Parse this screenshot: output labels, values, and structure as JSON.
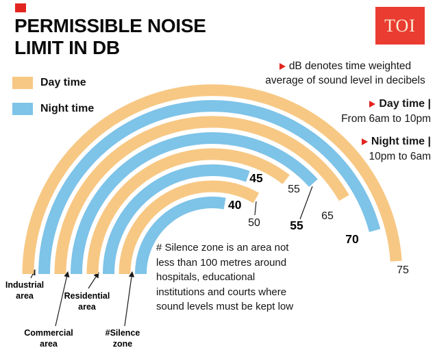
{
  "colors": {
    "accent_red": "#e2241f",
    "logo_red": "#ea3c31",
    "day": "#f7c884",
    "night": "#7ec3e8"
  },
  "header": {
    "title_line1": "PERMISSIBLE NOISE",
    "title_line2": "LIMIT IN DB",
    "logo_text": "TOI"
  },
  "legend": {
    "day_label": "Day time",
    "night_label": "Night time"
  },
  "side_notes": {
    "db_line1": "dB denotes time weighted",
    "db_line2": "average of sound level in decibels",
    "day_label": "Day time |",
    "day_time": "From 6am to 10pm",
    "night_label": "Night time |",
    "night_time": "10pm to 6am"
  },
  "silence_note": "# Silence zone is an area not less than 100 metres around hospitals, educational institutions and courts where sound levels must be kept low",
  "chart_data": {
    "type": "radial-bar",
    "unit": "dB",
    "title": "Permissible noise limit in dB",
    "categories": [
      "Industrial area",
      "Commercial area",
      "Residential area",
      "#Silence zone"
    ],
    "series": [
      {
        "name": "Day time",
        "values": [
          75,
          65,
          55,
          50
        ]
      },
      {
        "name": "Night time",
        "values": [
          70,
          55,
          45,
          40
        ]
      }
    ],
    "legend_position": "top-left",
    "annotations": [
      "45",
      "55",
      "40",
      "50",
      "55",
      "65",
      "70",
      "75"
    ]
  }
}
